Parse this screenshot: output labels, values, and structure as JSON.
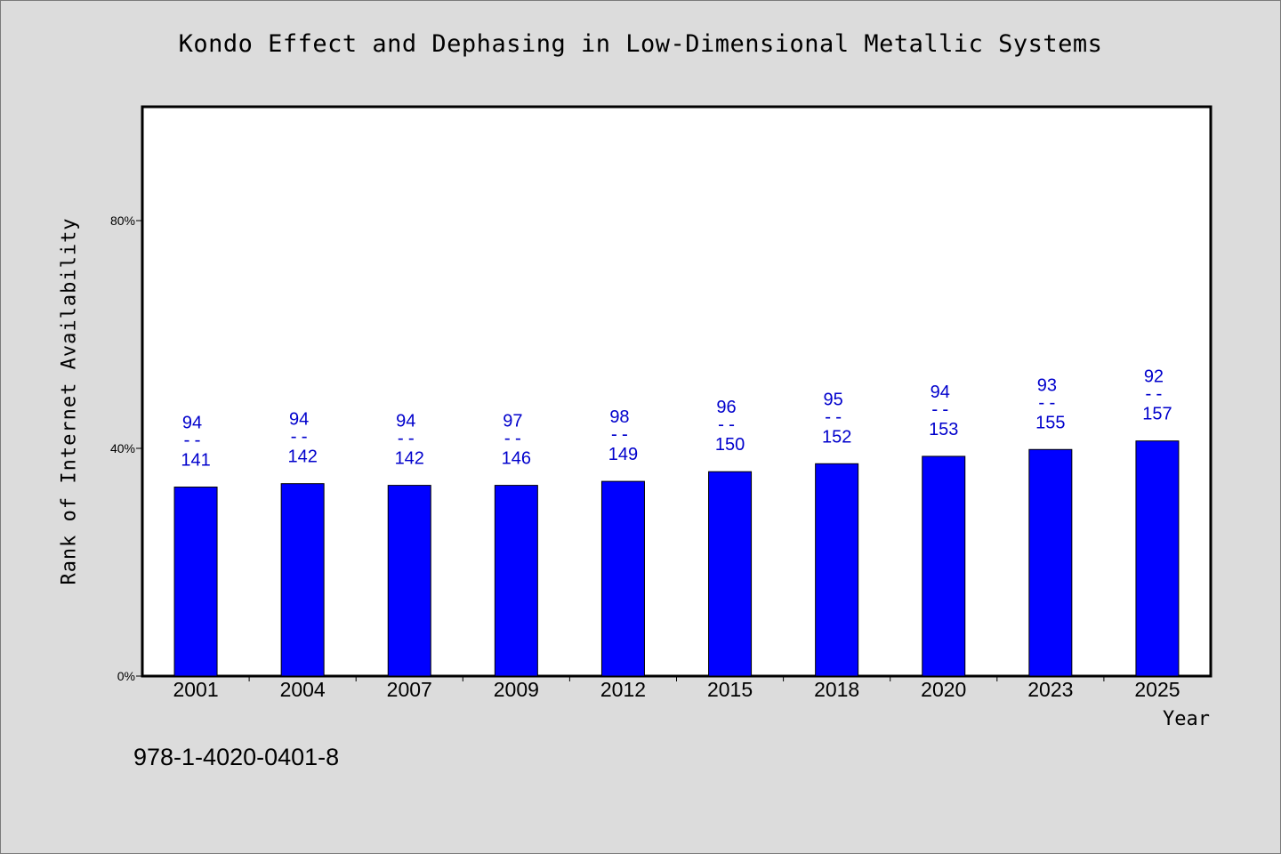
{
  "chart_data": {
    "type": "bar",
    "title": "Kondo Effect and Dephasing in Low-Dimensional Metallic Systems",
    "xlabel": "Year",
    "ylabel": "Rank of Internet Availability",
    "categories": [
      "2001",
      "2004",
      "2007",
      "2009",
      "2012",
      "2015",
      "2018",
      "2020",
      "2023",
      "2025"
    ],
    "values": [
      33.2,
      33.8,
      33.5,
      33.5,
      34.2,
      35.9,
      37.3,
      38.6,
      39.8,
      41.3
    ],
    "ylim": [
      0,
      100
    ],
    "yticks": [
      0,
      40,
      80
    ],
    "ytick_labels": [
      "0%",
      "40%",
      "80%"
    ],
    "bar_labels": [
      {
        "top": "94",
        "sep": "--",
        "bottom": "141"
      },
      {
        "top": "94",
        "sep": "--",
        "bottom": "142"
      },
      {
        "top": "94",
        "sep": "--",
        "bottom": "142"
      },
      {
        "top": "97",
        "sep": "--",
        "bottom": "146"
      },
      {
        "top": "98",
        "sep": "--",
        "bottom": "149"
      },
      {
        "top": "96",
        "sep": "--",
        "bottom": "150"
      },
      {
        "top": "95",
        "sep": "--",
        "bottom": "152"
      },
      {
        "top": "94",
        "sep": "--",
        "bottom": "153"
      },
      {
        "top": "93",
        "sep": "--",
        "bottom": "155"
      },
      {
        "top": "92",
        "sep": "--",
        "bottom": "157"
      }
    ],
    "grid": false,
    "legend": "none",
    "colors": {
      "bar": "#0000ff",
      "label": "#0000cc",
      "background": "#dcdcdc",
      "plot_background": "#ffffff"
    }
  },
  "footer": {
    "code": "978-1-4020-0401-8"
  }
}
